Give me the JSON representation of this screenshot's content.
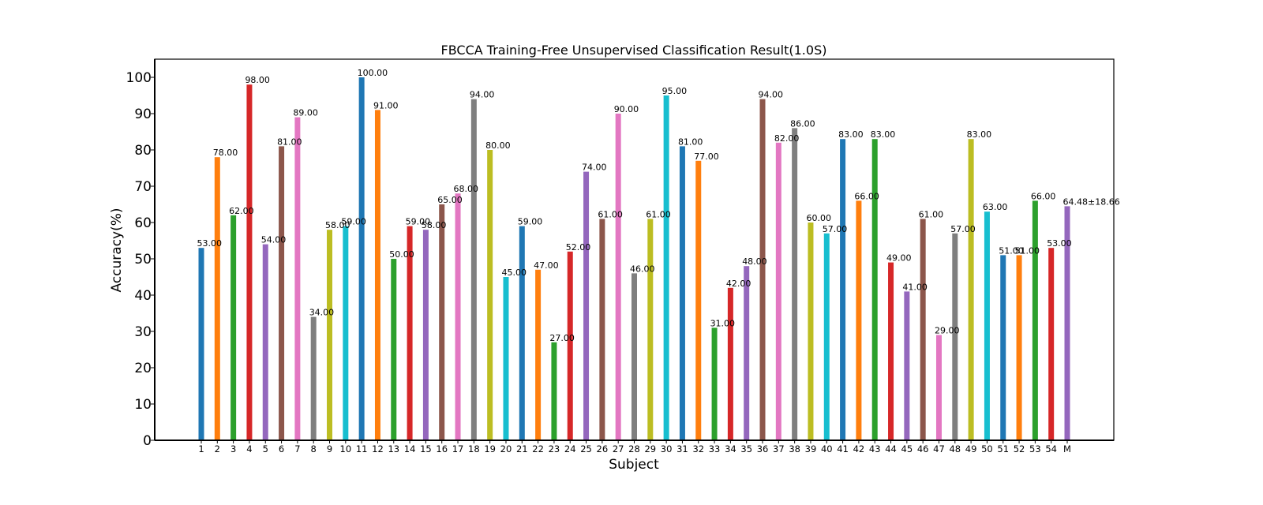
{
  "chart_data": {
    "type": "bar",
    "title": "FBCCA Training-Free Unsupervised Classification Result(1.0S)",
    "xlabel": "Subject",
    "ylabel": "Accuracy(%)",
    "ylim": [
      0,
      105
    ],
    "yticks": [
      0,
      10,
      20,
      30,
      40,
      50,
      60,
      70,
      80,
      90,
      100
    ],
    "grid": false,
    "categories": [
      "1",
      "2",
      "3",
      "4",
      "5",
      "6",
      "7",
      "8",
      "9",
      "10",
      "11",
      "12",
      "13",
      "14",
      "15",
      "16",
      "17",
      "18",
      "19",
      "20",
      "21",
      "22",
      "23",
      "24",
      "25",
      "26",
      "27",
      "28",
      "29",
      "30",
      "31",
      "32",
      "33",
      "34",
      "35",
      "36",
      "37",
      "38",
      "39",
      "40",
      "41",
      "42",
      "43",
      "44",
      "45",
      "46",
      "47",
      "48",
      "49",
      "50",
      "51",
      "52",
      "53",
      "54",
      "M"
    ],
    "values": [
      53,
      78,
      62,
      98,
      54,
      81,
      89,
      34,
      58,
      59,
      100,
      91,
      50,
      59,
      58,
      65,
      68,
      94,
      80,
      45,
      59,
      47,
      27,
      52,
      74,
      61,
      90,
      46,
      61,
      95,
      81,
      77,
      31,
      42,
      48,
      94,
      82,
      86,
      60,
      57,
      83,
      66,
      83,
      49,
      41,
      61,
      29,
      57,
      83,
      63,
      51,
      51,
      66,
      53,
      64.48
    ],
    "data_labels": [
      "53.00",
      "78.00",
      "62.00",
      "98.00",
      "54.00",
      "81.00",
      "89.00",
      "34.00",
      "58.00",
      "59.00",
      "100.00",
      "91.00",
      "50.00",
      "59.00",
      "58.00",
      "65.00",
      "68.00",
      "94.00",
      "80.00",
      "45.00",
      "59.00",
      "47.00",
      "27.00",
      "52.00",
      "74.00",
      "61.00",
      "90.00",
      "46.00",
      "61.00",
      "95.00",
      "81.00",
      "77.00",
      "31.00",
      "42.00",
      "48.00",
      "94.00",
      "82.00",
      "86.00",
      "60.00",
      "57.00",
      "83.00",
      "66.00",
      "83.00",
      "49.00",
      "41.00",
      "61.00",
      "29.00",
      "57.00",
      "83.00",
      "63.00",
      "51.00",
      "51.00",
      "66.00",
      "53.00",
      "64.48±18.66"
    ],
    "colors": [
      "#1f77b4",
      "#ff7f0e",
      "#2ca02c",
      "#d62728",
      "#9467bd",
      "#8c564b",
      "#e377c2",
      "#7f7f7f",
      "#bcbd22",
      "#17becf"
    ],
    "mean_label_color": "#ff0000"
  }
}
